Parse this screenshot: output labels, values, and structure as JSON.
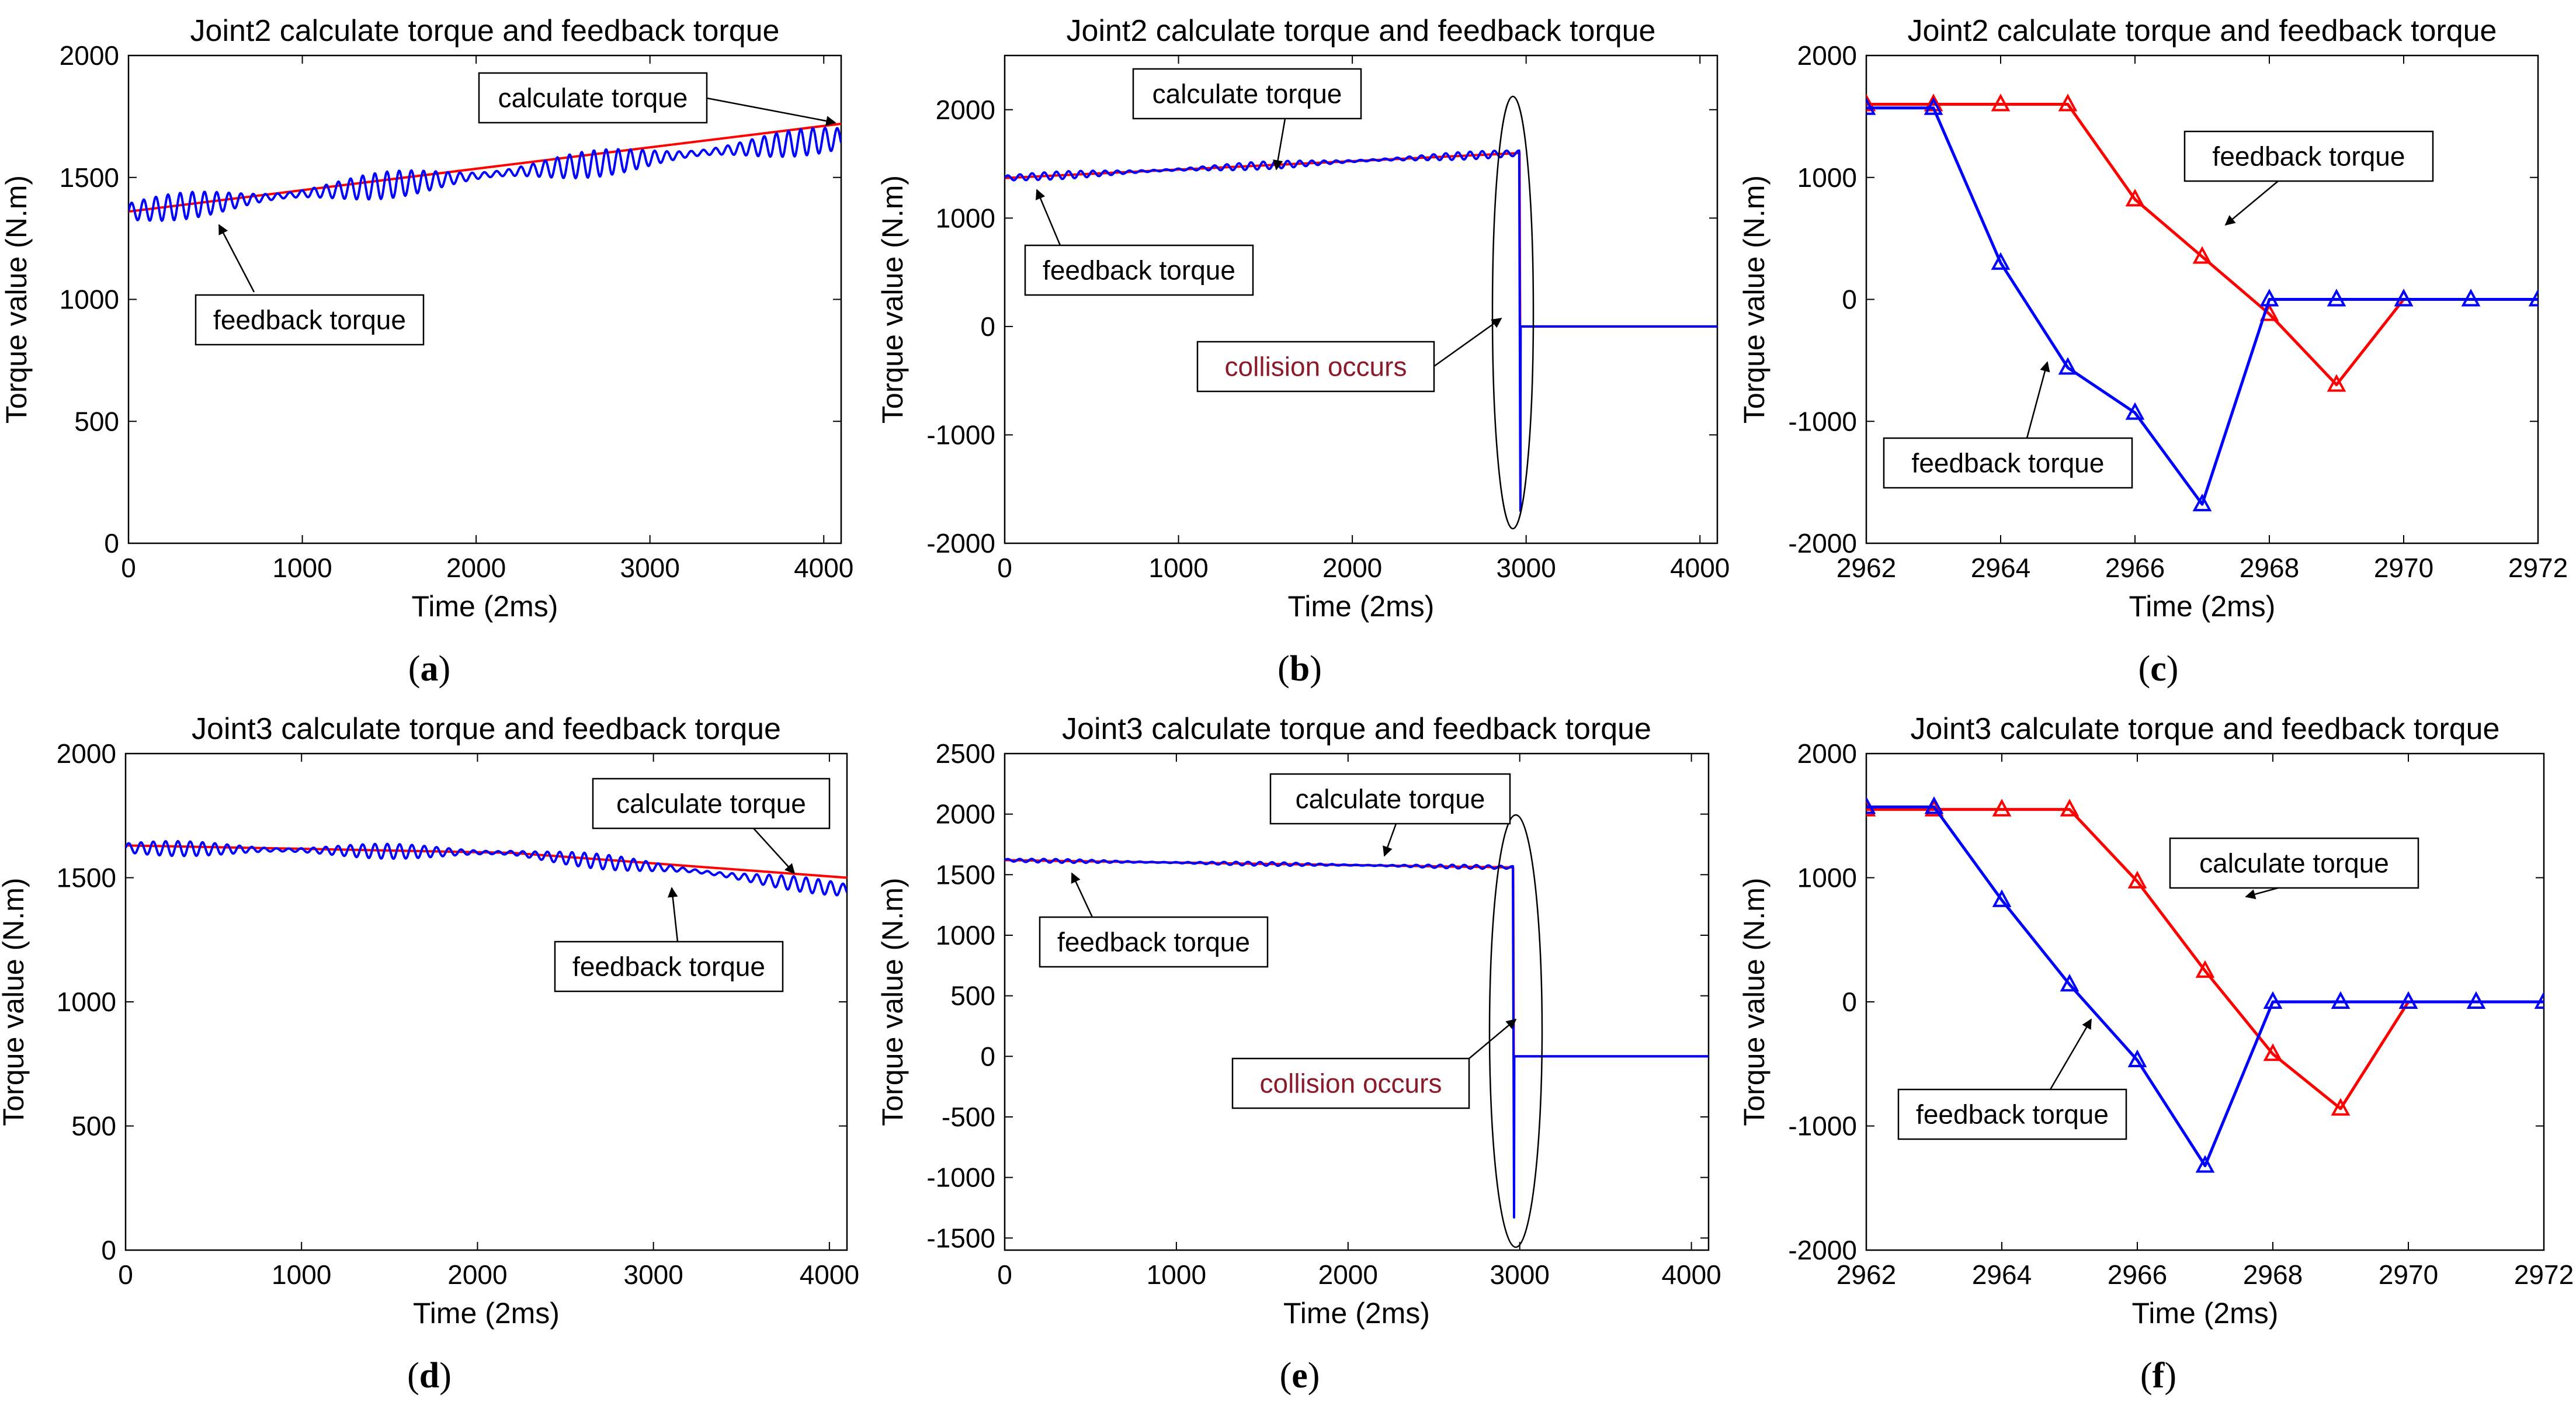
{
  "chart_data": [
    {
      "id": "a",
      "type": "line",
      "panel_label": "a",
      "title": "Joint2 calculate torque and feedback torque",
      "xlabel": "Time (2ms)",
      "ylabel": "Torque value (N.m)",
      "xlim": [
        0,
        4100
      ],
      "ylim": [
        0,
        2000
      ],
      "xticks": [
        0,
        1000,
        2000,
        3000,
        4000
      ],
      "yticks": [
        0,
        500,
        1000,
        1500,
        2000
      ],
      "series": [
        {
          "name": "calculate torque",
          "color": "#ff0000",
          "x": [
            0,
            4100
          ],
          "y": [
            1360,
            1720
          ]
        },
        {
          "name": "feedback torque",
          "color": "#0000ff",
          "noise": {
            "amp": 55,
            "period": 70
          },
          "x": [
            0,
            4100
          ],
          "y": [
            1360,
            1660
          ]
        }
      ],
      "annotations": [
        {
          "text": "calculate torque",
          "style": "black"
        },
        {
          "text": "feedback torque",
          "style": "black"
        }
      ]
    },
    {
      "id": "b",
      "type": "line",
      "panel_label": "b",
      "title": "Joint2 calculate torque and feedback torque",
      "xlabel": "Time (2ms)",
      "ylabel": "Torque value (N.m)",
      "xlim": [
        0,
        4100
      ],
      "ylim": [
        -2000,
        2500
      ],
      "xticks": [
        0,
        1000,
        2000,
        3000,
        4000
      ],
      "yticks": [
        -2000,
        -1000,
        0,
        1000,
        2000
      ],
      "series": [
        {
          "name": "calculate torque",
          "color": "#ff0000",
          "x": [
            0,
            2962,
            2967,
            2968,
            4100
          ],
          "y": [
            1370,
            1600,
            -700,
            0,
            0
          ]
        },
        {
          "name": "feedback torque",
          "color": "#0000ff",
          "noise": {
            "amp": 35,
            "period": 70
          },
          "x": [
            0,
            2962,
            2967,
            2968,
            4100
          ],
          "y": [
            1370,
            1600,
            -1700,
            0,
            0
          ]
        }
      ],
      "annotations": [
        {
          "text": "calculate torque",
          "style": "black"
        },
        {
          "text": "feedback torque",
          "style": "black"
        },
        {
          "text": "collision occurs",
          "style": "red"
        }
      ]
    },
    {
      "id": "c",
      "type": "line",
      "panel_label": "c",
      "title": "Joint2 calculate torque and feedback torque",
      "xlabel": "Time (2ms)",
      "ylabel": "Torque value (N.m)",
      "xlim": [
        2962,
        2972
      ],
      "ylim": [
        -2000,
        2000
      ],
      "xticks": [
        2962,
        2964,
        2966,
        2968,
        2970,
        2972
      ],
      "yticks": [
        -2000,
        -1000,
        0,
        1000,
        2000
      ],
      "series": [
        {
          "name": "calculate torque",
          "color": "#ff0000",
          "marker": "triangle",
          "x": [
            2962,
            2963,
            2964,
            2965,
            2966,
            2967,
            2968,
            2969,
            2970
          ],
          "y": [
            1600,
            1600,
            1600,
            1600,
            820,
            350,
            -120,
            -700,
            0
          ]
        },
        {
          "name": "feedback torque",
          "color": "#0000ff",
          "marker": "triangle",
          "x": [
            2962,
            2963,
            2964,
            2965,
            2966,
            2967,
            2968,
            2969,
            2970,
            2971,
            2972
          ],
          "y": [
            1570,
            1570,
            300,
            -560,
            -930,
            -1680,
            0,
            0,
            0,
            0,
            0
          ]
        }
      ],
      "annotations": [
        {
          "text": "feedback torque",
          "style": "black"
        },
        {
          "text": "feedback torque",
          "style": "black"
        }
      ]
    },
    {
      "id": "d",
      "type": "line",
      "panel_label": "d",
      "title": "Joint3 calculate torque and feedback torque",
      "xlabel": "Time (2ms)",
      "ylabel": "Torque value (N.m)",
      "xlim": [
        0,
        4100
      ],
      "ylim": [
        0,
        2000
      ],
      "xticks": [
        0,
        1000,
        2000,
        3000,
        4000
      ],
      "yticks": [
        0,
        500,
        1000,
        1500,
        2000
      ],
      "series": [
        {
          "name": "calculate torque",
          "color": "#ff0000",
          "x": [
            0,
            2200,
            4100
          ],
          "y": [
            1630,
            1600,
            1500
          ]
        },
        {
          "name": "feedback torque",
          "color": "#0000ff",
          "noise": {
            "amp": 30,
            "period": 70
          },
          "x": [
            0,
            2200,
            3200,
            4100
          ],
          "y": [
            1620,
            1600,
            1530,
            1450
          ]
        }
      ],
      "annotations": [
        {
          "text": "calculate torque",
          "style": "black"
        },
        {
          "text": "feedback torque",
          "style": "black"
        }
      ]
    },
    {
      "id": "e",
      "type": "line",
      "panel_label": "e",
      "title": "Joint3 calculate torque and feedback torque",
      "xlabel": "Time (2ms)",
      "ylabel": "Torque value (N.m)",
      "xlim": [
        0,
        4100
      ],
      "ylim": [
        -1600,
        2500
      ],
      "xticks": [
        0,
        1000,
        2000,
        3000,
        4000
      ],
      "yticks": [
        -1500,
        -1000,
        -500,
        0,
        500,
        1000,
        1500,
        2000,
        2500
      ],
      "series": [
        {
          "name": "calculate torque",
          "color": "#ff0000",
          "x": [
            0,
            2962,
            2967,
            2968,
            4100
          ],
          "y": [
            1620,
            1560,
            -850,
            0,
            0
          ]
        },
        {
          "name": "feedback torque",
          "color": "#0000ff",
          "noise": {
            "amp": 15,
            "period": 70
          },
          "x": [
            0,
            2962,
            2967,
            2968,
            4100
          ],
          "y": [
            1620,
            1560,
            -1330,
            0,
            0
          ]
        }
      ],
      "annotations": [
        {
          "text": "calculate torque",
          "style": "black"
        },
        {
          "text": "feedback torque",
          "style": "black"
        },
        {
          "text": "collision occurs",
          "style": "red"
        }
      ]
    },
    {
      "id": "f",
      "type": "line",
      "panel_label": "f",
      "title": "Joint3 calculate torque and feedback torque",
      "xlabel": "Time (2ms)",
      "ylabel": "Torque value (N.m)",
      "xlim": [
        2962,
        2972
      ],
      "ylim": [
        -2000,
        2000
      ],
      "xticks": [
        2962,
        2964,
        2966,
        2968,
        2970,
        2972
      ],
      "yticks": [
        -2000,
        -1000,
        0,
        1000,
        2000
      ],
      "series": [
        {
          "name": "calculate torque",
          "color": "#ff0000",
          "marker": "triangle",
          "x": [
            2962,
            2963,
            2964,
            2965,
            2966,
            2967,
            2968,
            2969,
            2970
          ],
          "y": [
            1550,
            1550,
            1550,
            1550,
            970,
            250,
            -420,
            -860,
            0
          ]
        },
        {
          "name": "feedback torque",
          "color": "#0000ff",
          "marker": "triangle",
          "x": [
            2962,
            2963,
            2964,
            2965,
            2966,
            2967,
            2968,
            2969,
            2970,
            2971,
            2972
          ],
          "y": [
            1570,
            1570,
            820,
            140,
            -470,
            -1320,
            0,
            0,
            0,
            0,
            0
          ]
        }
      ],
      "annotations": [
        {
          "text": "calculate torque",
          "style": "black"
        },
        {
          "text": "feedback torque",
          "style": "black"
        }
      ]
    }
  ]
}
